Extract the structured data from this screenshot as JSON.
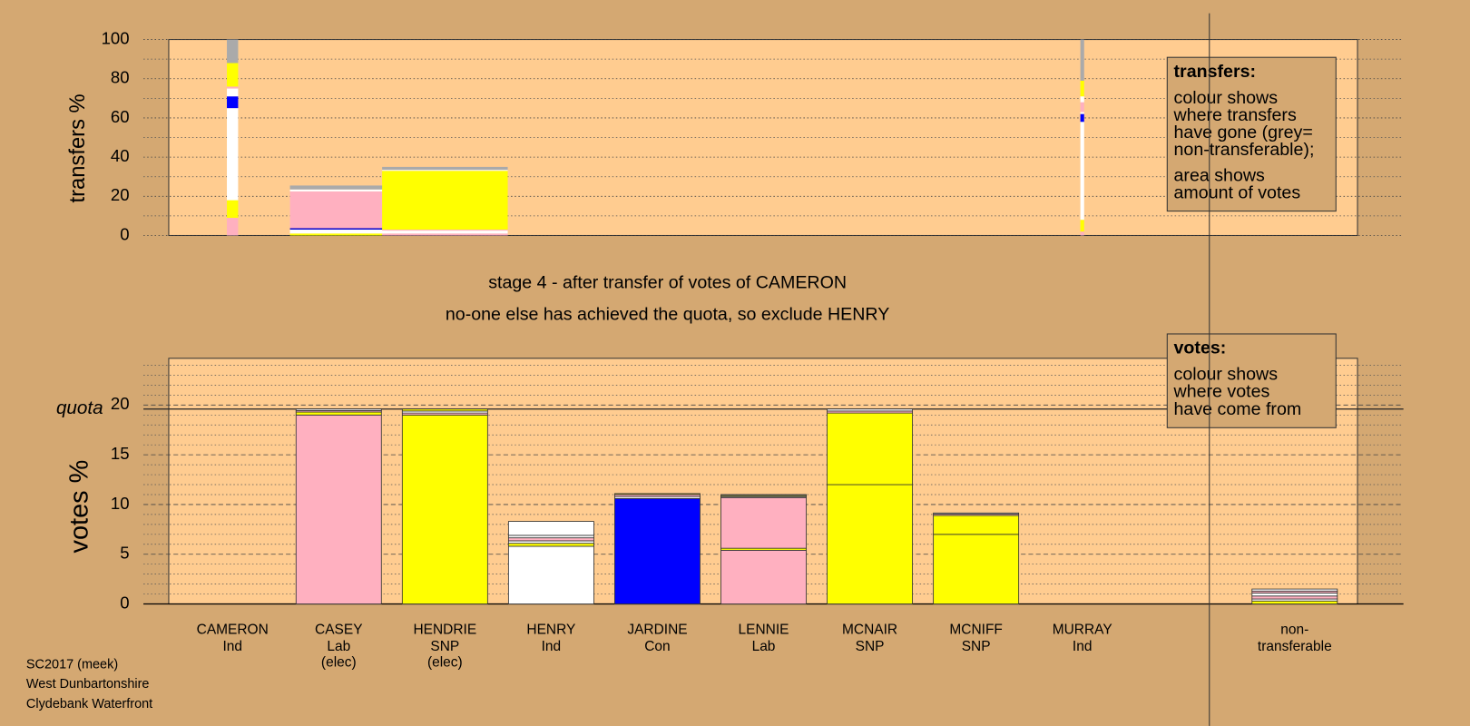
{
  "chart_data": [
    {
      "type": "transfer-columns",
      "ylabel": "transfers %",
      "ylim": [
        0,
        100
      ],
      "yticks": [
        0,
        20,
        40,
        60,
        80,
        100
      ],
      "minor_yticks": [
        10,
        30,
        50,
        70,
        90
      ],
      "columns": [
        {
          "votes": 1.2,
          "segments": [
            {
              "color": "#ffb0c0",
              "value": 9
            },
            {
              "color": "#ffff00",
              "value": 9
            },
            {
              "color": "#ffffff",
              "value": 47
            },
            {
              "color": "#0000ff",
              "value": 6
            },
            {
              "color": "#ffffff",
              "value": 4
            },
            {
              "color": "#ffb0c0",
              "value": 1
            },
            {
              "color": "#ffff00",
              "value": 12
            },
            {
              "color": "#aaaaaa",
              "value": 12
            }
          ]
        },
        {
          "votes": 10.4,
          "segments": [
            {
              "color": "#ffff00",
              "value": 1
            },
            {
              "color": "#ffffff",
              "value": 2
            },
            {
              "color": "#0000cc",
              "value": 0.7
            },
            {
              "color": "#ffb0c0",
              "value": 18.8
            },
            {
              "color": "#ffffff",
              "value": 1
            },
            {
              "color": "#aaaaaa",
              "value": 2
            }
          ]
        },
        {
          "votes": 13.4,
          "segments": [
            {
              "color": "#ffb0c0",
              "value": 1
            },
            {
              "color": "#ffffff",
              "value": 1.5
            },
            {
              "color": "#ffb0c0",
              "value": 0.5
            },
            {
              "color": "#ffff00",
              "value": 30
            },
            {
              "color": "#ffffff",
              "value": 0.5
            },
            {
              "color": "#aaaaaa",
              "value": 1.5
            }
          ]
        },
        null,
        null,
        null,
        null,
        null,
        {
          "votes": 0.4,
          "segments": [
            {
              "color": "#ffb0c0",
              "value": 2
            },
            {
              "color": "#ffff00",
              "value": 6
            },
            {
              "color": "#ffffff",
              "value": 50
            },
            {
              "color": "#0000ff",
              "value": 4
            },
            {
              "color": "#ffffff",
              "value": 1
            },
            {
              "color": "#ffb0c0",
              "value": 5
            },
            {
              "color": "#ffffff",
              "value": 3
            },
            {
              "color": "#ffff00",
              "value": 8
            },
            {
              "color": "#aaaaaa",
              "value": 21
            }
          ]
        },
        null,
        null
      ],
      "legend": {
        "title": "transfers:",
        "paragraphs": [
          [
            "colour shows",
            "where transfers",
            "have gone (grey=",
            "non-transferable);"
          ],
          [
            "area shows",
            "amount of votes"
          ]
        ]
      }
    },
    {
      "type": "stacked-bar",
      "title": "stage 4 - after transfer of votes of CAMERON",
      "subtitle": "no-one else has achieved the quota, so exclude HENRY",
      "ylabel": "votes %",
      "ylim": [
        0,
        24.7
      ],
      "yticks": [
        0,
        5,
        10,
        15,
        20
      ],
      "minor_yticks": [
        1,
        2,
        3,
        4,
        6,
        7,
        8,
        9,
        11,
        12,
        13,
        14,
        16,
        17,
        18,
        19,
        21,
        22,
        23,
        24
      ],
      "quota": {
        "label": "quota",
        "value": 19.6
      },
      "categories": [
        "CAMERON",
        "CASEY",
        "HENDRIE",
        "HENRY",
        "JARDINE",
        "LENNIE",
        "MCNAIR",
        "MCNIFF",
        "MURRAY",
        null,
        "non-transferable"
      ],
      "parties": [
        "Ind",
        "Lab",
        "SNP",
        "Ind",
        "Con",
        "Lab",
        "SNP",
        "SNP",
        "Ind",
        null,
        null
      ],
      "status": [
        null,
        "(elec)",
        "(elec)",
        null,
        null,
        null,
        null,
        null,
        null,
        null,
        null
      ],
      "segments": [
        [],
        [
          {
            "color": "#ffb0c0",
            "value": 19.0
          },
          {
            "color": "#ffff00",
            "value": 0.3
          },
          {
            "color": "#ffb0c0",
            "value": 0.15
          },
          {
            "color": "#ffffff",
            "value": 0.15
          }
        ],
        [
          {
            "color": "#ffff00",
            "value": 19.0
          },
          {
            "color": "#ffb0c0",
            "value": 0.2
          },
          {
            "color": "#ffffff",
            "value": 0.2
          },
          {
            "color": "#ffff00",
            "value": 0.2
          }
        ],
        [
          {
            "color": "#ffffff",
            "value": 5.8
          },
          {
            "color": "#ffff00",
            "value": 0.3
          },
          {
            "color": "#ffffff",
            "value": 0.25
          },
          {
            "color": "#ffb0c0",
            "value": 0.3
          },
          {
            "color": "#ffffff",
            "value": 0.25
          },
          {
            "color": "#ffffff",
            "value": 1.4
          }
        ],
        [
          {
            "color": "#0000ff",
            "value": 10.6
          },
          {
            "color": "#ffffff",
            "value": 0.2
          },
          {
            "color": "#ffb0c0",
            "value": 0.2
          },
          {
            "color": "#ffff00",
            "value": 0.1
          }
        ],
        [
          {
            "color": "#ffb0c0",
            "value": 5.4
          },
          {
            "color": "#ffff00",
            "value": 0.2
          },
          {
            "color": "#ffb0c0",
            "value": 5.1
          },
          {
            "color": "#ffffff",
            "value": 0.1
          },
          {
            "color": "#ffff00",
            "value": 0.1
          },
          {
            "color": "#aaaaaa",
            "value": 0.1
          }
        ],
        [
          {
            "color": "#ffff00",
            "value": 12.0
          },
          {
            "color": "#ffff00",
            "value": 7.2
          },
          {
            "color": "#ffb0c0",
            "value": 0.2
          },
          {
            "color": "#ffffff",
            "value": 0.2
          }
        ],
        [
          {
            "color": "#ffff00",
            "value": 7.0
          },
          {
            "color": "#ffff00",
            "value": 1.9
          },
          {
            "color": "#ffb0c0",
            "value": 0.15
          },
          {
            "color": "#ffffff",
            "value": 0.1
          }
        ],
        [],
        [],
        [
          {
            "color": "#ffff00",
            "value": 0.3
          },
          {
            "color": "#ffffff",
            "value": 0.2
          },
          {
            "color": "#ffb0c0",
            "value": 0.3
          },
          {
            "color": "#ffffff",
            "value": 0.3
          },
          {
            "color": "#ffb0c0",
            "value": 0.2
          },
          {
            "color": "#ffffff",
            "value": 0.2
          }
        ]
      ],
      "legend": {
        "title": "votes:",
        "paragraphs": [
          [
            "colour shows",
            "where votes",
            "have come from"
          ]
        ]
      }
    }
  ],
  "footer": [
    "SC2017 (meek)",
    "West Dunbartonshire",
    "Clydebank Waterfront"
  ]
}
